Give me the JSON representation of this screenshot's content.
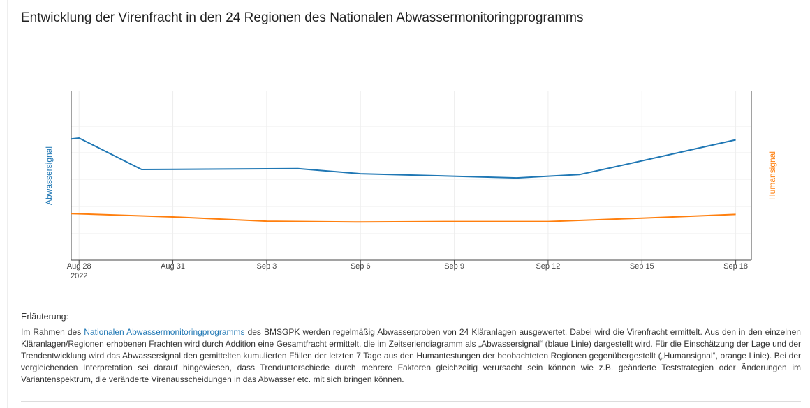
{
  "page": {
    "title": "Entwicklung der Virenfracht in den 24 Regionen des Nationalen Abwassermonitoringprogramms"
  },
  "colors": {
    "abwasser": "#1f77b4",
    "human": "#ff7f0e"
  },
  "chart_data": {
    "type": "line",
    "title": "Entwicklung der Virenfracht in den 24 Regionen des Nationalen Abwassermonitoringprogramms",
    "xlabel": "",
    "y_left_label": "Abwassersignal",
    "y_right_label": "Humansignal",
    "y_tick_labels": "none",
    "grid": true,
    "x_tick_labels": [
      {
        "date": "2022-08-28",
        "label": "Aug 28",
        "sublabel": "2022"
      },
      {
        "date": "2022-08-31",
        "label": "Aug 31"
      },
      {
        "date": "2022-09-03",
        "label": "Sep 3"
      },
      {
        "date": "2022-09-06",
        "label": "Sep 6"
      },
      {
        "date": "2022-09-09",
        "label": "Sep 9"
      },
      {
        "date": "2022-09-12",
        "label": "Sep 12"
      },
      {
        "date": "2022-09-15",
        "label": "Sep 15"
      },
      {
        "date": "2022-09-18",
        "label": "Sep 18"
      }
    ],
    "x_range": [
      "2022-08-27T18:00",
      "2022-09-18T12:00"
    ],
    "y_range": [
      0,
      1
    ],
    "series": [
      {
        "name": "Abwassersignal",
        "color": "#1f77b4",
        "points": [
          {
            "x": "2022-08-27T18:00",
            "y": 0.715
          },
          {
            "x": "2022-08-28",
            "y": 0.72
          },
          {
            "x": "2022-08-30",
            "y": 0.535
          },
          {
            "x": "2022-09-04",
            "y": 0.54
          },
          {
            "x": "2022-09-06",
            "y": 0.51
          },
          {
            "x": "2022-09-11",
            "y": 0.485
          },
          {
            "x": "2022-09-13",
            "y": 0.505
          },
          {
            "x": "2022-09-14",
            "y": 0.545
          },
          {
            "x": "2022-09-18",
            "y": 0.71
          }
        ]
      },
      {
        "name": "Humansignal",
        "color": "#ff7f0e",
        "points": [
          {
            "x": "2022-08-27T18:00",
            "y": 0.275
          },
          {
            "x": "2022-08-31",
            "y": 0.255
          },
          {
            "x": "2022-09-03",
            "y": 0.23
          },
          {
            "x": "2022-09-06",
            "y": 0.225
          },
          {
            "x": "2022-09-09",
            "y": 0.228
          },
          {
            "x": "2022-09-12",
            "y": 0.228
          },
          {
            "x": "2022-09-15",
            "y": 0.248
          },
          {
            "x": "2022-09-18",
            "y": 0.27
          }
        ]
      }
    ]
  },
  "explanation": {
    "heading": "Erläuterung:",
    "text_before": "Im Rahmen des ",
    "link_text": "Nationalen Abwassermonitoringprogramms",
    "text_after": " des BMSGPK werden regelmäßig Abwasserproben von 24 Kläranlagen ausgewertet. Dabei wird die Virenfracht ermittelt. Aus den in den einzelnen Kläranlagen/Regionen erhobenen Frachten wird durch Addition eine Gesamtfracht ermittelt, die im Zeitseriendiagramm als „Abwassersignal“ (blaue Linie) dargestellt wird. Für die Einschätzung der Lage und der Trendentwicklung wird das Abwassersignal den gemittelten kumulierten Fällen der letzten 7 Tage aus den Humantestungen der beobachteten Regionen gegenübergestellt („Humansignal“, orange Linie). Bei der vergleichenden Interpretation sei darauf hingewiesen, dass Trendunterschiede durch mehrere Faktoren gleichzeitig verursacht sein können wie z.B. geänderte Teststrategien oder Änderungen im Variantenspektrum, die veränderte Virenausscheidungen in das Abwasser etc. mit sich bringen können."
  }
}
